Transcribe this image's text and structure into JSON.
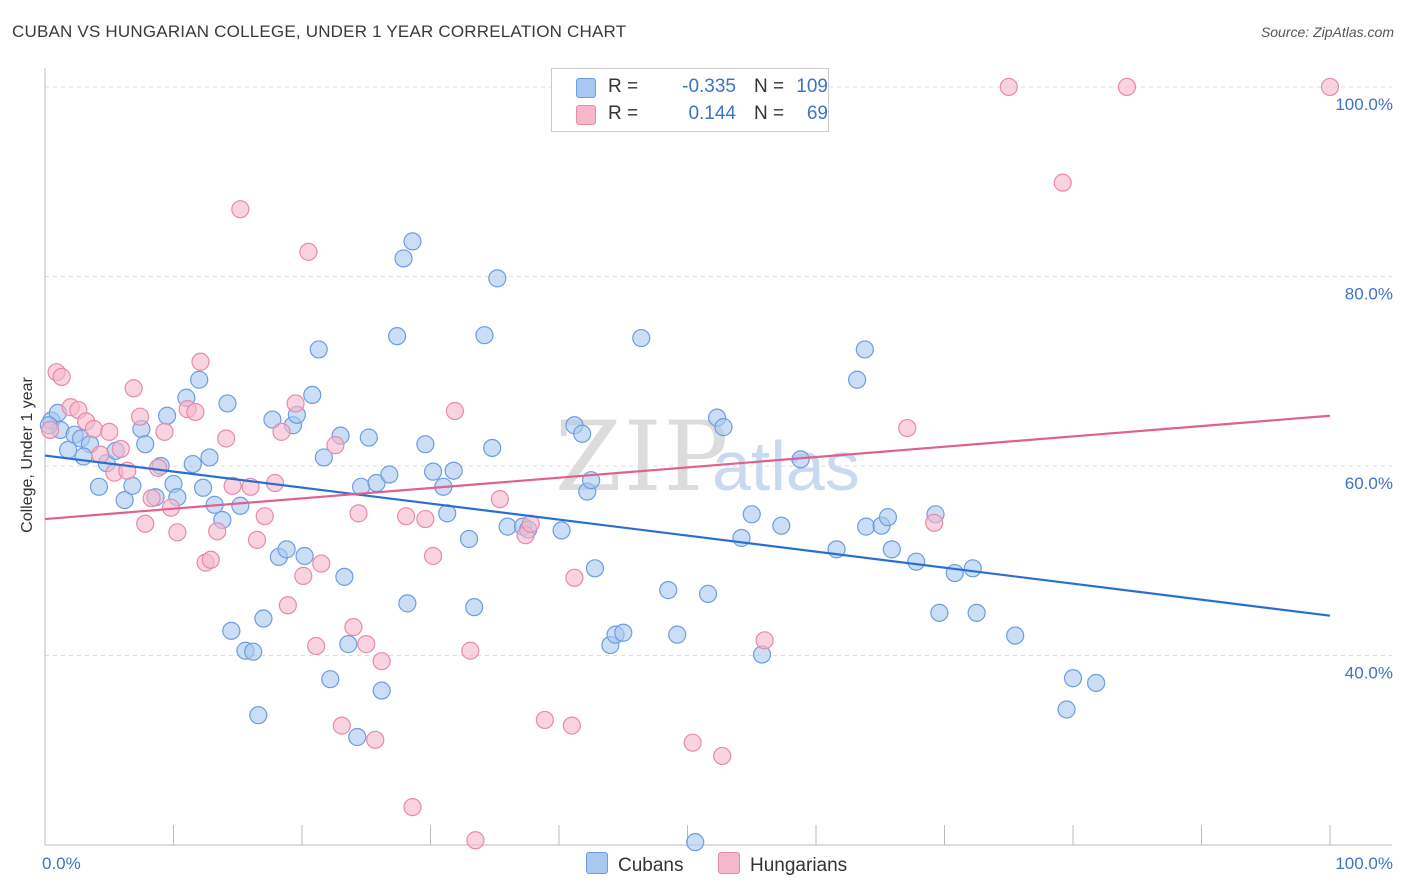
{
  "header": {
    "title": "CUBAN VS HUNGARIAN COLLEGE, UNDER 1 YEAR CORRELATION CHART",
    "source": "Source: ZipAtlas.com"
  },
  "watermark": {
    "zip": "ZIP",
    "atlas": "atlas"
  },
  "legend": {
    "rows": [
      {
        "r_label": "R =",
        "r_value": "-0.335",
        "n_label": "N =",
        "n_value": "109"
      },
      {
        "r_label": "R =",
        "r_value": "0.144",
        "n_label": "N =",
        "n_value": "69"
      }
    ]
  },
  "bottom_legend": {
    "cubans": "Cubans",
    "hungarians": "Hungarians"
  },
  "colors": {
    "cubans_fill": "#a9c8f0",
    "cubans_stroke": "#6d9de0",
    "cubans_line": "#2a6fd0",
    "hungarians_fill": "#f5b8cb",
    "hungarians_stroke": "#e88aa8",
    "hungarians_line": "#e0608f",
    "axis_text": "#3d74c4",
    "grid": "#dddddd"
  },
  "chart_data": {
    "type": "scatter",
    "title": "CUBAN VS HUNGARIAN COLLEGE, UNDER 1 YEAR CORRELATION CHART",
    "xlabel": "",
    "ylabel": "College, Under 1 year",
    "xlim": [
      0,
      100
    ],
    "ylim": [
      20,
      102
    ],
    "x_tick_labels": [
      "0.0%",
      "100.0%"
    ],
    "y_ticks": [
      40,
      60,
      80,
      100
    ],
    "y_tick_labels": [
      "40.0%",
      "60.0%",
      "80.0%",
      "100.0%"
    ],
    "grid": true,
    "legend_position": "top-center",
    "series": [
      {
        "name": "Cubans",
        "r": -0.335,
        "n": 109,
        "trend": {
          "x": [
            0,
            100
          ],
          "y": [
            61.1,
            44.2
          ]
        },
        "points": [
          [
            0.5,
            64.8
          ],
          [
            1.0,
            65.6
          ],
          [
            1.2,
            63.8
          ],
          [
            1.8,
            61.7
          ],
          [
            2.3,
            63.3
          ],
          [
            2.8,
            62.9
          ],
          [
            3.5,
            62.3
          ],
          [
            4.2,
            57.8
          ],
          [
            4.8,
            60.3
          ],
          [
            5.5,
            61.6
          ],
          [
            6.2,
            56.4
          ],
          [
            6.8,
            57.9
          ],
          [
            7.5,
            63.9
          ],
          [
            7.8,
            62.3
          ],
          [
            8.6,
            56.7
          ],
          [
            9.0,
            60.0
          ],
          [
            9.5,
            65.3
          ],
          [
            10.0,
            58.1
          ],
          [
            10.3,
            56.7
          ],
          [
            11.0,
            67.2
          ],
          [
            11.5,
            60.2
          ],
          [
            12.0,
            69.1
          ],
          [
            12.3,
            57.7
          ],
          [
            12.8,
            60.9
          ],
          [
            13.2,
            55.9
          ],
          [
            13.8,
            54.3
          ],
          [
            14.2,
            66.6
          ],
          [
            14.5,
            42.6
          ],
          [
            15.2,
            55.8
          ],
          [
            15.6,
            40.5
          ],
          [
            16.2,
            40.4
          ],
          [
            16.6,
            33.7
          ],
          [
            17.0,
            43.9
          ],
          [
            17.7,
            64.9
          ],
          [
            18.2,
            50.4
          ],
          [
            18.8,
            51.2
          ],
          [
            19.3,
            64.3
          ],
          [
            19.6,
            65.4
          ],
          [
            20.2,
            50.5
          ],
          [
            20.8,
            67.5
          ],
          [
            21.3,
            72.3
          ],
          [
            21.7,
            60.9
          ],
          [
            22.2,
            37.5
          ],
          [
            23.0,
            63.2
          ],
          [
            23.3,
            48.3
          ],
          [
            23.6,
            41.2
          ],
          [
            24.3,
            31.4
          ],
          [
            24.6,
            57.8
          ],
          [
            25.2,
            63.0
          ],
          [
            25.8,
            58.2
          ],
          [
            26.2,
            36.3
          ],
          [
            26.8,
            59.1
          ],
          [
            27.4,
            73.7
          ],
          [
            27.9,
            81.9
          ],
          [
            28.2,
            45.5
          ],
          [
            28.6,
            83.7
          ],
          [
            29.6,
            62.3
          ],
          [
            30.2,
            59.4
          ],
          [
            31.0,
            57.8
          ],
          [
            31.3,
            55.0
          ],
          [
            31.8,
            59.5
          ],
          [
            33.0,
            52.3
          ],
          [
            33.4,
            45.1
          ],
          [
            34.2,
            73.8
          ],
          [
            34.8,
            61.9
          ],
          [
            35.2,
            79.8
          ],
          [
            36.0,
            53.6
          ],
          [
            37.2,
            53.6
          ],
          [
            37.6,
            53.3
          ],
          [
            40.2,
            53.2
          ],
          [
            41.2,
            64.3
          ],
          [
            41.8,
            63.4
          ],
          [
            42.2,
            57.3
          ],
          [
            42.5,
            58.5
          ],
          [
            42.8,
            49.2
          ],
          [
            44.0,
            41.1
          ],
          [
            44.4,
            42.2
          ],
          [
            45.0,
            42.4
          ],
          [
            46.4,
            73.5
          ],
          [
            48.5,
            46.9
          ],
          [
            49.2,
            42.2
          ],
          [
            50.6,
            20.3
          ],
          [
            51.6,
            46.5
          ],
          [
            52.3,
            65.1
          ],
          [
            52.8,
            64.1
          ],
          [
            54.2,
            52.4
          ],
          [
            55.0,
            54.9
          ],
          [
            55.8,
            40.1
          ],
          [
            57.3,
            53.7
          ],
          [
            58.8,
            60.7
          ],
          [
            61.6,
            51.2
          ],
          [
            63.2,
            69.1
          ],
          [
            63.8,
            72.3
          ],
          [
            63.9,
            53.6
          ],
          [
            65.1,
            53.7
          ],
          [
            65.6,
            54.6
          ],
          [
            65.9,
            51.2
          ],
          [
            67.8,
            49.9
          ],
          [
            69.3,
            54.9
          ],
          [
            69.6,
            44.5
          ],
          [
            70.8,
            48.7
          ],
          [
            72.2,
            49.2
          ],
          [
            72.5,
            44.5
          ],
          [
            75.5,
            42.1
          ],
          [
            79.5,
            34.3
          ],
          [
            80.0,
            37.6
          ],
          [
            81.8,
            37.1
          ],
          [
            0.3,
            64.3
          ],
          [
            3.0,
            61.0
          ]
        ]
      },
      {
        "name": "Hungarians",
        "r": 0.144,
        "n": 69,
        "trend": {
          "x": [
            0,
            100
          ],
          "y": [
            54.4,
            65.3
          ]
        },
        "points": [
          [
            0.4,
            63.8
          ],
          [
            0.9,
            69.9
          ],
          [
            1.3,
            69.4
          ],
          [
            2.0,
            66.2
          ],
          [
            2.6,
            65.9
          ],
          [
            3.2,
            64.7
          ],
          [
            3.8,
            63.9
          ],
          [
            4.3,
            61.2
          ],
          [
            5.0,
            63.6
          ],
          [
            5.4,
            59.3
          ],
          [
            5.9,
            61.8
          ],
          [
            6.4,
            59.5
          ],
          [
            6.9,
            68.2
          ],
          [
            7.4,
            65.2
          ],
          [
            7.8,
            53.9
          ],
          [
            8.3,
            56.6
          ],
          [
            8.8,
            59.8
          ],
          [
            9.3,
            63.6
          ],
          [
            9.8,
            55.6
          ],
          [
            10.3,
            53.0
          ],
          [
            11.1,
            66.0
          ],
          [
            11.7,
            65.7
          ],
          [
            12.1,
            71.0
          ],
          [
            12.5,
            49.8
          ],
          [
            12.9,
            50.1
          ],
          [
            13.4,
            53.1
          ],
          [
            14.1,
            62.9
          ],
          [
            14.6,
            57.9
          ],
          [
            15.2,
            87.1
          ],
          [
            16.0,
            57.8
          ],
          [
            16.5,
            52.2
          ],
          [
            17.1,
            54.7
          ],
          [
            17.9,
            58.2
          ],
          [
            18.4,
            63.6
          ],
          [
            18.9,
            45.3
          ],
          [
            19.5,
            66.6
          ],
          [
            20.1,
            48.4
          ],
          [
            20.5,
            82.6
          ],
          [
            21.1,
            41.0
          ],
          [
            21.5,
            49.7
          ],
          [
            22.6,
            62.2
          ],
          [
            23.1,
            32.6
          ],
          [
            24.0,
            43.0
          ],
          [
            24.4,
            55.0
          ],
          [
            25.0,
            41.2
          ],
          [
            25.7,
            31.1
          ],
          [
            26.2,
            39.4
          ],
          [
            28.1,
            54.7
          ],
          [
            28.6,
            24.0
          ],
          [
            29.6,
            54.4
          ],
          [
            30.2,
            50.5
          ],
          [
            31.9,
            65.8
          ],
          [
            33.1,
            40.5
          ],
          [
            33.5,
            20.5
          ],
          [
            35.4,
            56.5
          ],
          [
            37.4,
            52.7
          ],
          [
            37.8,
            53.9
          ],
          [
            38.9,
            33.2
          ],
          [
            41.0,
            32.6
          ],
          [
            41.2,
            48.2
          ],
          [
            50.4,
            30.8
          ],
          [
            52.7,
            29.4
          ],
          [
            56.0,
            41.6
          ],
          [
            67.1,
            64.0
          ],
          [
            69.2,
            54.0
          ],
          [
            75.0,
            100.0
          ],
          [
            79.2,
            89.9
          ],
          [
            84.2,
            100.0
          ],
          [
            100.0,
            100.0
          ]
        ]
      }
    ]
  }
}
